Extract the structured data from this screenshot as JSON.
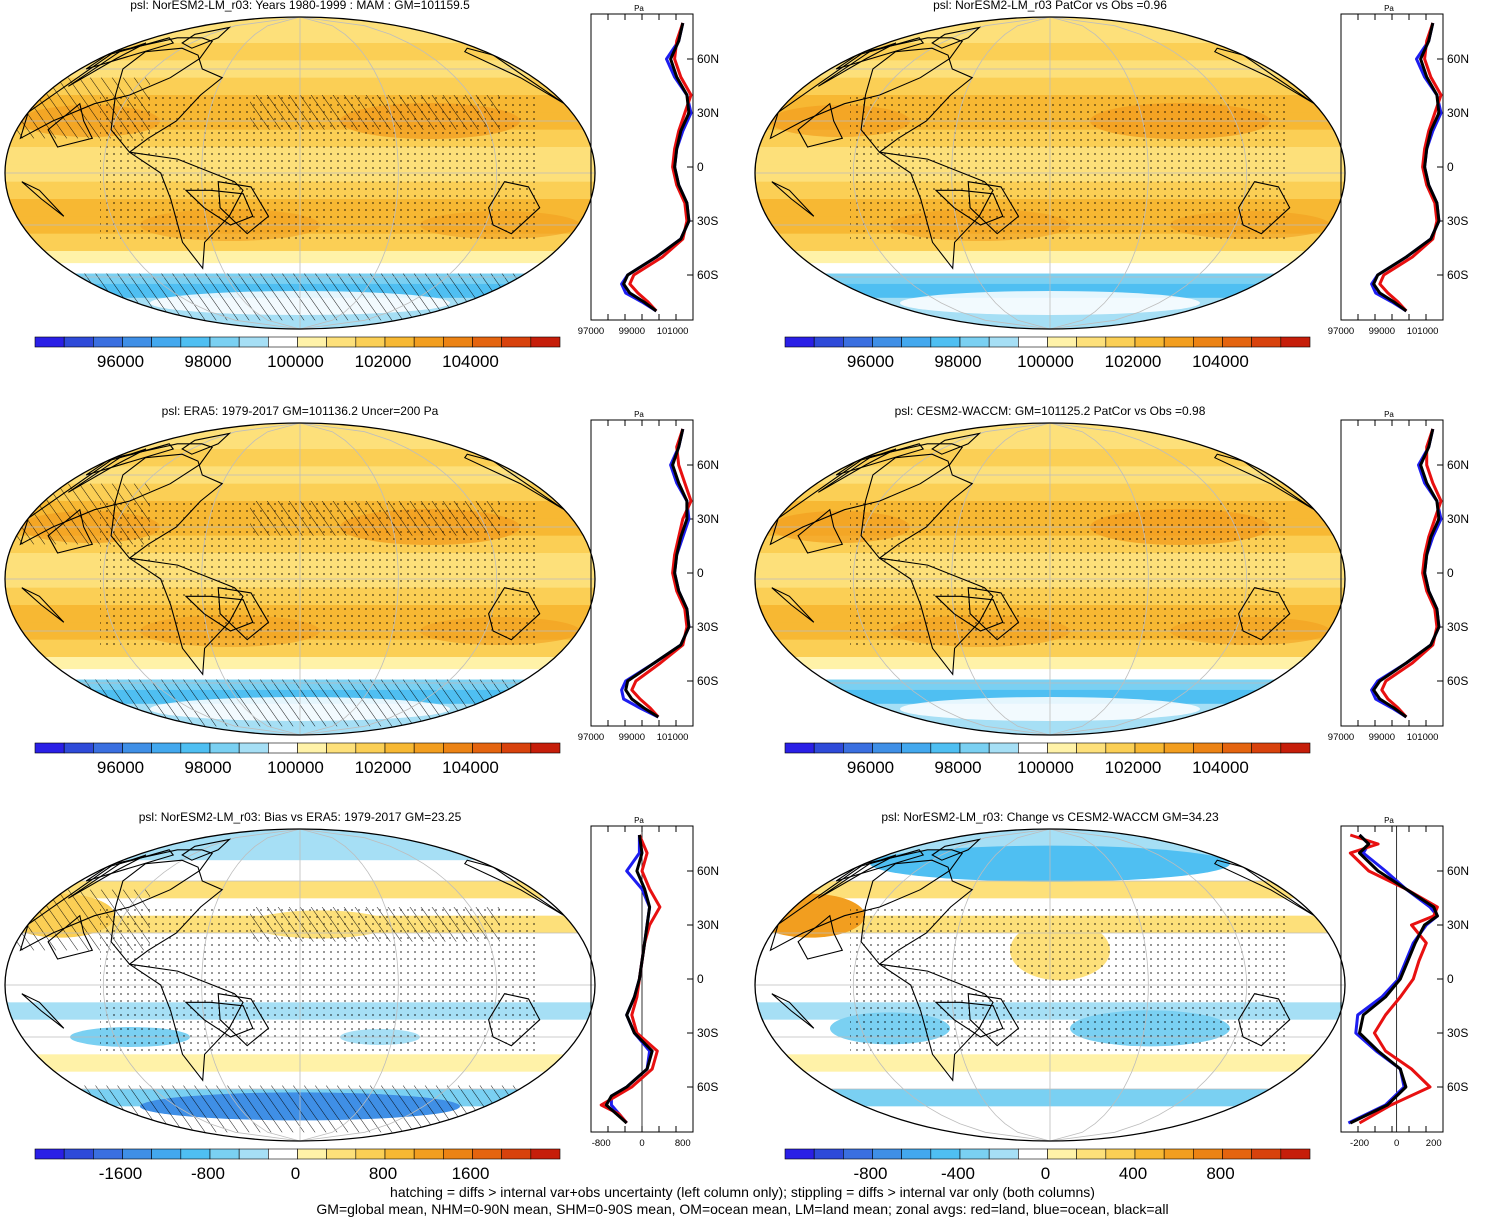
{
  "colors": {
    "scale": [
      "#2a1fe6",
      "#2e4ad9",
      "#3a6fe0",
      "#3f8fe6",
      "#43a8ee",
      "#4fbff2",
      "#7ad0f2",
      "#a6dff5",
      "#ffffff",
      "#fff2a8",
      "#fde07a",
      "#fbcf55",
      "#f7b833",
      "#f29e1f",
      "#ec8314",
      "#e4640f",
      "#d8420c",
      "#c61e0a"
    ],
    "ocean": "#fcd06a",
    "stipple": "#000000",
    "coast": "#000000"
  },
  "footer": {
    "line1": "hatching = diffs > internal var+obs uncertainty (left column only); stippling = diffs > internal var only (both columns)",
    "line2": "GM=global mean, NHM=0-90N mean, SHM=0-90S mean, OM=ocean mean, LM=land mean; zonal avgs: red=land, blue=ocean, black=all"
  },
  "panels": [
    {
      "title": "psl: NorESM2-LM_r03: Years 1980-1999 : MAM : GM=101159.5",
      "kind": "abs",
      "hatch": true,
      "stipple": true,
      "colorbar_labels": [
        "96000",
        "98000",
        "100000",
        "102000",
        "104000"
      ],
      "zonal_ticks": [
        "97000",
        "99000",
        "101000"
      ],
      "zonal_unit": "Pa"
    },
    {
      "title": "psl: NorESM2-LM_r03 PatCor vs Obs =0.96",
      "kind": "abs",
      "hatch": false,
      "stipple": true,
      "colorbar_labels": [
        "96000",
        "98000",
        "100000",
        "102000",
        "104000"
      ],
      "zonal_ticks": [
        "97000",
        "99000",
        "101000"
      ],
      "zonal_unit": "Pa"
    },
    {
      "title": "psl: ERA5: 1979-2017 GM=101136.2 Uncer=200 Pa",
      "kind": "abs",
      "hatch": true,
      "stipple": true,
      "colorbar_labels": [
        "96000",
        "98000",
        "100000",
        "102000",
        "104000"
      ],
      "zonal_ticks": [
        "97000",
        "99000",
        "101000"
      ],
      "zonal_unit": "Pa"
    },
    {
      "title": "psl: CESM2-WACCM: GM=101125.2 PatCor vs Obs =0.98",
      "kind": "abs",
      "hatch": false,
      "stipple": true,
      "colorbar_labels": [
        "96000",
        "98000",
        "100000",
        "102000",
        "104000"
      ],
      "zonal_ticks": [
        "97000",
        "99000",
        "101000"
      ],
      "zonal_unit": "Pa"
    },
    {
      "title": "psl: NorESM2-LM_r03: Bias vs ERA5: 1979-2017 GM=23.25",
      "kind": "diff",
      "hatch": true,
      "stipple": true,
      "colorbar_labels": [
        "-1600",
        "-800",
        "0",
        "800",
        "1600"
      ],
      "zonal_ticks": [
        "-800",
        "0",
        "800"
      ],
      "zonal_unit": "Pa"
    },
    {
      "title": "psl: NorESM2-LM_r03: Change vs CESM2-WACCM GM=34.23",
      "kind": "diff",
      "hatch": false,
      "stipple": true,
      "colorbar_labels": [
        "-800",
        "-400",
        "0",
        "400",
        "800"
      ],
      "zonal_ticks": [
        "-200",
        "0",
        "200"
      ],
      "zonal_unit": "Pa"
    }
  ],
  "lat_labels": [
    "60N",
    "30N",
    "0",
    "30S",
    "60S"
  ],
  "chart_data": [
    {
      "type": "heatmap",
      "title": "psl: NorESM2-LM_r03: Years 1980-1999 : MAM : GM=101159.5",
      "variable": "psl",
      "units": "Pa",
      "global_mean": 101159.5,
      "colorbar_ticks": [
        96000,
        98000,
        100000,
        102000,
        104000
      ],
      "lat_ticks": [
        "60N",
        "30N",
        "0",
        "30S",
        "60S"
      ],
      "zonal_xrange": [
        97000,
        102000
      ],
      "zonal": {
        "lat": [
          80,
          70,
          60,
          50,
          40,
          30,
          20,
          10,
          0,
          -10,
          -20,
          -30,
          -40,
          -50,
          -60,
          -65,
          -70,
          -75,
          -80
        ],
        "all": [
          101500,
          101300,
          100900,
          101200,
          101700,
          101800,
          101400,
          101200,
          101100,
          101300,
          101700,
          101800,
          101400,
          100200,
          98800,
          98600,
          98900,
          99600,
          100200
        ],
        "land": [
          101500,
          101200,
          101100,
          101400,
          101900,
          101600,
          101300,
          101100,
          101000,
          101200,
          101600,
          101700,
          101500,
          100500,
          99100,
          98900,
          99300,
          99800,
          100200
        ],
        "ocean": [
          101500,
          101300,
          100700,
          101100,
          101700,
          101900,
          101500,
          101200,
          101100,
          101300,
          101700,
          101800,
          101400,
          100200,
          98800,
          98500,
          98700,
          99500,
          100200
        ]
      }
    },
    {
      "type": "heatmap",
      "title": "psl: NorESM2-LM_r03 PatCor vs Obs =0.96",
      "variable": "psl",
      "units": "Pa",
      "pattern_correlation": 0.96,
      "colorbar_ticks": [
        96000,
        98000,
        100000,
        102000,
        104000
      ],
      "lat_ticks": [
        "60N",
        "30N",
        "0",
        "30S",
        "60S"
      ],
      "zonal_xrange": [
        97000,
        102000
      ],
      "zonal": {
        "lat": [
          80,
          70,
          60,
          50,
          40,
          30,
          20,
          10,
          0,
          -10,
          -20,
          -30,
          -40,
          -50,
          -60,
          -65,
          -70,
          -75,
          -80
        ],
        "all": [
          101500,
          101300,
          100900,
          101200,
          101700,
          101800,
          101400,
          101200,
          101100,
          101300,
          101700,
          101800,
          101400,
          100200,
          98800,
          98600,
          98900,
          99600,
          100200
        ],
        "land": [
          101500,
          101200,
          101100,
          101400,
          101900,
          101600,
          101300,
          101100,
          101000,
          101200,
          101600,
          101700,
          101500,
          100500,
          99100,
          98900,
          99300,
          99800,
          100200
        ],
        "ocean": [
          101500,
          101300,
          100700,
          101100,
          101700,
          101900,
          101500,
          101200,
          101100,
          101300,
          101700,
          101800,
          101400,
          100200,
          98800,
          98500,
          98700,
          99500,
          100200
        ]
      }
    },
    {
      "type": "heatmap",
      "title": "psl: ERA5: 1979-2017 GM=101136.2 Uncer=200 Pa",
      "variable": "psl",
      "units": "Pa",
      "global_mean": 101136.2,
      "uncertainty": 200,
      "colorbar_ticks": [
        96000,
        98000,
        100000,
        102000,
        104000
      ],
      "lat_ticks": [
        "60N",
        "30N",
        "0",
        "30S",
        "60S"
      ],
      "zonal_xrange": [
        97000,
        102000
      ],
      "zonal": {
        "lat": [
          80,
          70,
          60,
          50,
          40,
          30,
          20,
          10,
          0,
          -10,
          -20,
          -30,
          -40,
          -50,
          -60,
          -65,
          -70,
          -75,
          -80
        ],
        "all": [
          101500,
          101300,
          101000,
          101300,
          101700,
          101700,
          101400,
          101200,
          101100,
          101300,
          101700,
          101800,
          101400,
          100100,
          98800,
          98700,
          99000,
          99600,
          100300
        ],
        "land": [
          101500,
          101200,
          101300,
          101600,
          101900,
          101500,
          101300,
          101100,
          101000,
          101200,
          101600,
          101700,
          101500,
          100400,
          99200,
          99000,
          99400,
          99900,
          100300
        ],
        "ocean": [
          101500,
          101300,
          100900,
          101200,
          101700,
          101800,
          101500,
          101200,
          101100,
          101300,
          101700,
          101800,
          101400,
          100100,
          98700,
          98500,
          98600,
          99400,
          100300
        ]
      }
    },
    {
      "type": "heatmap",
      "title": "psl: CESM2-WACCM: GM=101125.2 PatCor vs Obs =0.98",
      "variable": "psl",
      "units": "Pa",
      "global_mean": 101125.2,
      "pattern_correlation": 0.98,
      "colorbar_ticks": [
        96000,
        98000,
        100000,
        102000,
        104000
      ],
      "lat_ticks": [
        "60N",
        "30N",
        "0",
        "30S",
        "60S"
      ],
      "zonal_xrange": [
        97000,
        102000
      ],
      "zonal": {
        "lat": [
          80,
          70,
          60,
          50,
          40,
          30,
          20,
          10,
          0,
          -10,
          -20,
          -30,
          -40,
          -50,
          -60,
          -65,
          -70,
          -75,
          -80
        ],
        "all": [
          101500,
          101300,
          100900,
          101200,
          101700,
          101800,
          101400,
          101200,
          101100,
          101300,
          101700,
          101800,
          101400,
          100200,
          98900,
          98600,
          98900,
          99600,
          100200
        ],
        "land": [
          101500,
          101200,
          101200,
          101500,
          101900,
          101600,
          101300,
          101100,
          101000,
          101200,
          101600,
          101700,
          101500,
          100500,
          99200,
          99000,
          99300,
          99800,
          100200
        ],
        "ocean": [
          101500,
          101300,
          100800,
          101100,
          101700,
          101900,
          101500,
          101200,
          101100,
          101300,
          101700,
          101800,
          101400,
          100200,
          98800,
          98500,
          98700,
          99500,
          100200
        ]
      }
    },
    {
      "type": "heatmap",
      "title": "psl: NorESM2-LM_r03: Bias vs ERA5: 1979-2017 GM=23.25",
      "variable": "psl",
      "units": "Pa",
      "global_mean": 23.25,
      "colorbar_ticks": [
        -1600,
        -800,
        0,
        800,
        1600
      ],
      "lat_ticks": [
        "60N",
        "30N",
        "0",
        "30S",
        "60S"
      ],
      "zonal_xrange": [
        -1000,
        1000
      ],
      "zonal": {
        "lat": [
          80,
          70,
          60,
          50,
          40,
          30,
          20,
          10,
          0,
          -10,
          -20,
          -30,
          -40,
          -50,
          -60,
          -65,
          -70,
          -75,
          -80
        ],
        "all": [
          -50,
          0,
          -100,
          50,
          150,
          100,
          50,
          0,
          -50,
          -150,
          -300,
          -150,
          200,
          100,
          -300,
          -600,
          -700,
          -500,
          -300
        ],
        "land": [
          -50,
          100,
          0,
          150,
          350,
          150,
          50,
          0,
          -50,
          -100,
          -200,
          -100,
          300,
          200,
          -200,
          -500,
          -800,
          -450,
          -300
        ],
        "ocean": [
          -50,
          -50,
          -300,
          0,
          150,
          100,
          50,
          0,
          -50,
          -150,
          -300,
          -150,
          150,
          100,
          -300,
          -600,
          -600,
          -450,
          -300
        ]
      }
    },
    {
      "type": "heatmap",
      "title": "psl: NorESM2-LM_r03: Change vs CESM2-WACCM GM=34.23",
      "variable": "psl",
      "units": "Pa",
      "global_mean": 34.23,
      "colorbar_ticks": [
        -800,
        -400,
        0,
        400,
        800
      ],
      "lat_ticks": [
        "60N",
        "30N",
        "0",
        "30S",
        "60S"
      ],
      "zonal_xrange": [
        -300,
        250
      ],
      "zonal": {
        "lat": [
          80,
          75,
          70,
          60,
          50,
          40,
          35,
          30,
          20,
          10,
          0,
          -10,
          -20,
          -30,
          -40,
          -50,
          -60,
          -70,
          -80
        ],
        "all": [
          -200,
          -150,
          -200,
          -100,
          50,
          200,
          220,
          150,
          100,
          60,
          20,
          -60,
          -180,
          -200,
          -100,
          20,
          50,
          -50,
          -250
        ],
        "land": [
          -250,
          -100,
          -250,
          -150,
          50,
          220,
          200,
          80,
          160,
          120,
          90,
          20,
          -60,
          -120,
          -60,
          80,
          180,
          -30,
          -200
        ],
        "ocean": [
          -200,
          -150,
          -180,
          -60,
          50,
          180,
          220,
          160,
          90,
          50,
          10,
          -80,
          -210,
          -220,
          -110,
          20,
          40,
          -60,
          -260
        ]
      }
    }
  ]
}
